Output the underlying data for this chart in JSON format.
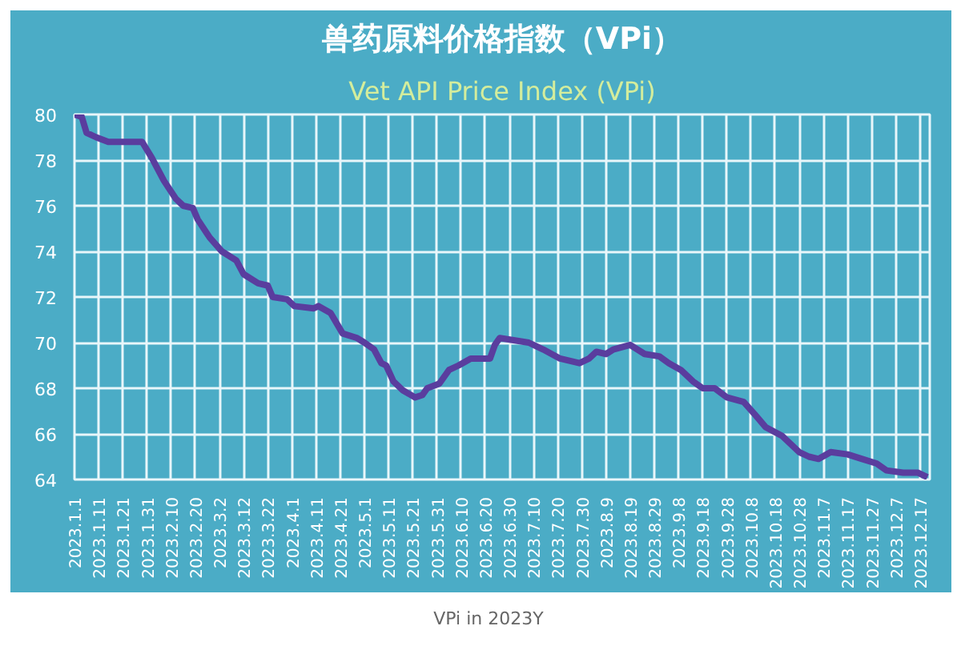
{
  "chart_data": {
    "type": "line",
    "title": "兽药原料价格指数（VPi）",
    "subtitle": "Vet API Price Index (VPi)",
    "annotations": [
      "VPi in 2023Y"
    ],
    "x": [
      "2023-01-01",
      "2023-01-04",
      "2023-01-06",
      "2023-01-10",
      "2023-01-15",
      "2023-01-29",
      "2023-02-02",
      "2023-02-07",
      "2023-02-12",
      "2023-02-15",
      "2023-02-19",
      "2023-02-21",
      "2023-02-26",
      "2023-03-03",
      "2023-03-09",
      "2023-03-12",
      "2023-03-18",
      "2023-03-22",
      "2023-03-24",
      "2023-03-30",
      "2023-04-02",
      "2023-04-10",
      "2023-04-12",
      "2023-04-17",
      "2023-04-22",
      "2023-04-28",
      "2023-05-01",
      "2023-05-05",
      "2023-05-08",
      "2023-05-10",
      "2023-05-13",
      "2023-05-17",
      "2023-05-22",
      "2023-05-25",
      "2023-05-27",
      "2023-06-01",
      "2023-06-05",
      "2023-06-09",
      "2023-06-14",
      "2023-06-22",
      "2023-06-24",
      "2023-06-26",
      "2023-07-08",
      "2023-07-14",
      "2023-07-21",
      "2023-07-29",
      "2023-08-02",
      "2023-08-05",
      "2023-08-09",
      "2023-08-12",
      "2023-08-19",
      "2023-08-25",
      "2023-08-31",
      "2023-09-04",
      "2023-09-09",
      "2023-09-14",
      "2023-09-18",
      "2023-09-23",
      "2023-09-28",
      "2023-10-05",
      "2023-10-10",
      "2023-10-14",
      "2023-10-21",
      "2023-10-28",
      "2023-11-01",
      "2023-11-05",
      "2023-11-10",
      "2023-11-17",
      "2023-11-23",
      "2023-11-29",
      "2023-12-03",
      "2023-12-10",
      "2023-12-16",
      "2023-12-20"
    ],
    "series": [
      {
        "color": "#5a3d9e",
        "values": [
          80.0,
          79.9,
          79.2,
          79.0,
          78.8,
          78.8,
          78.1,
          77.1,
          76.3,
          76.0,
          75.9,
          75.4,
          74.6,
          74.0,
          73.6,
          73.0,
          72.6,
          72.5,
          72.0,
          71.9,
          71.6,
          71.5,
          71.6,
          71.3,
          70.4,
          70.2,
          70.0,
          69.7,
          69.1,
          69.0,
          68.3,
          67.9,
          67.6,
          67.7,
          68.0,
          68.2,
          68.8,
          69.0,
          69.3,
          69.3,
          69.9,
          70.2,
          70.0,
          69.7,
          69.3,
          69.1,
          69.3,
          69.6,
          69.5,
          69.7,
          69.9,
          69.5,
          69.4,
          69.1,
          68.8,
          68.3,
          68.0,
          68.0,
          67.6,
          67.4,
          66.8,
          66.3,
          65.9,
          65.2,
          65.0,
          64.9,
          65.2,
          65.1,
          64.9,
          64.7,
          64.4,
          64.3,
          64.3,
          64.1
        ]
      }
    ],
    "xlim": [
      "2023-01-01",
      "2023-12-21"
    ],
    "xticks": [
      {
        "value": "2023-01-01",
        "label": "2023.1.1"
      },
      {
        "value": "2023-01-11",
        "label": "2023.1.11"
      },
      {
        "value": "2023-01-21",
        "label": "2023.1.21"
      },
      {
        "value": "2023-01-31",
        "label": "2023.1.31"
      },
      {
        "value": "2023-02-10",
        "label": "2023.2.10"
      },
      {
        "value": "2023-02-20",
        "label": "2023.2.20"
      },
      {
        "value": "2023-03-02",
        "label": "2023.3.2"
      },
      {
        "value": "2023-03-12",
        "label": "2023.3.12"
      },
      {
        "value": "2023-03-22",
        "label": "2023.3.22"
      },
      {
        "value": "2023-04-01",
        "label": "2023.4.1"
      },
      {
        "value": "2023-04-11",
        "label": "2023.4.11"
      },
      {
        "value": "2023-04-21",
        "label": "2023.4.21"
      },
      {
        "value": "2023-05-01",
        "label": "2023.5.1"
      },
      {
        "value": "2023-05-11",
        "label": "2023.5.11"
      },
      {
        "value": "2023-05-21",
        "label": "2023.5.21"
      },
      {
        "value": "2023-05-31",
        "label": "2023.5.31"
      },
      {
        "value": "2023-06-10",
        "label": "2023.6.10"
      },
      {
        "value": "2023-06-20",
        "label": "2023.6.20"
      },
      {
        "value": "2023-06-30",
        "label": "2023.6.30"
      },
      {
        "value": "2023-07-10",
        "label": "2023.7.10"
      },
      {
        "value": "2023-07-20",
        "label": "2023.7.20"
      },
      {
        "value": "2023-07-30",
        "label": "2023.7.30"
      },
      {
        "value": "2023-08-09",
        "label": "2023.8.9"
      },
      {
        "value": "2023-08-19",
        "label": "2023.8.19"
      },
      {
        "value": "2023-08-29",
        "label": "2023.8.29"
      },
      {
        "value": "2023-09-08",
        "label": "2023.9.8"
      },
      {
        "value": "2023-09-18",
        "label": "2023.9.18"
      },
      {
        "value": "2023-09-28",
        "label": "2023.9.28"
      },
      {
        "value": "2023-10-08",
        "label": "2023.10.8"
      },
      {
        "value": "2023-10-18",
        "label": "2023.10.18"
      },
      {
        "value": "2023-10-28",
        "label": "2023.10.28"
      },
      {
        "value": "2023-11-07",
        "label": "2023.11.7"
      },
      {
        "value": "2023-11-17",
        "label": "2023.11.17"
      },
      {
        "value": "2023-11-27",
        "label": "2023.11.27"
      },
      {
        "value": "2023-12-07",
        "label": "2023.12.7"
      },
      {
        "value": "2023-12-17",
        "label": "2023.12.17"
      }
    ],
    "ylim": [
      64,
      80
    ],
    "yticks": [
      64,
      66,
      68,
      70,
      72,
      74,
      76,
      78,
      80
    ],
    "grid": true,
    "line_style": "solid",
    "marker": "none"
  }
}
